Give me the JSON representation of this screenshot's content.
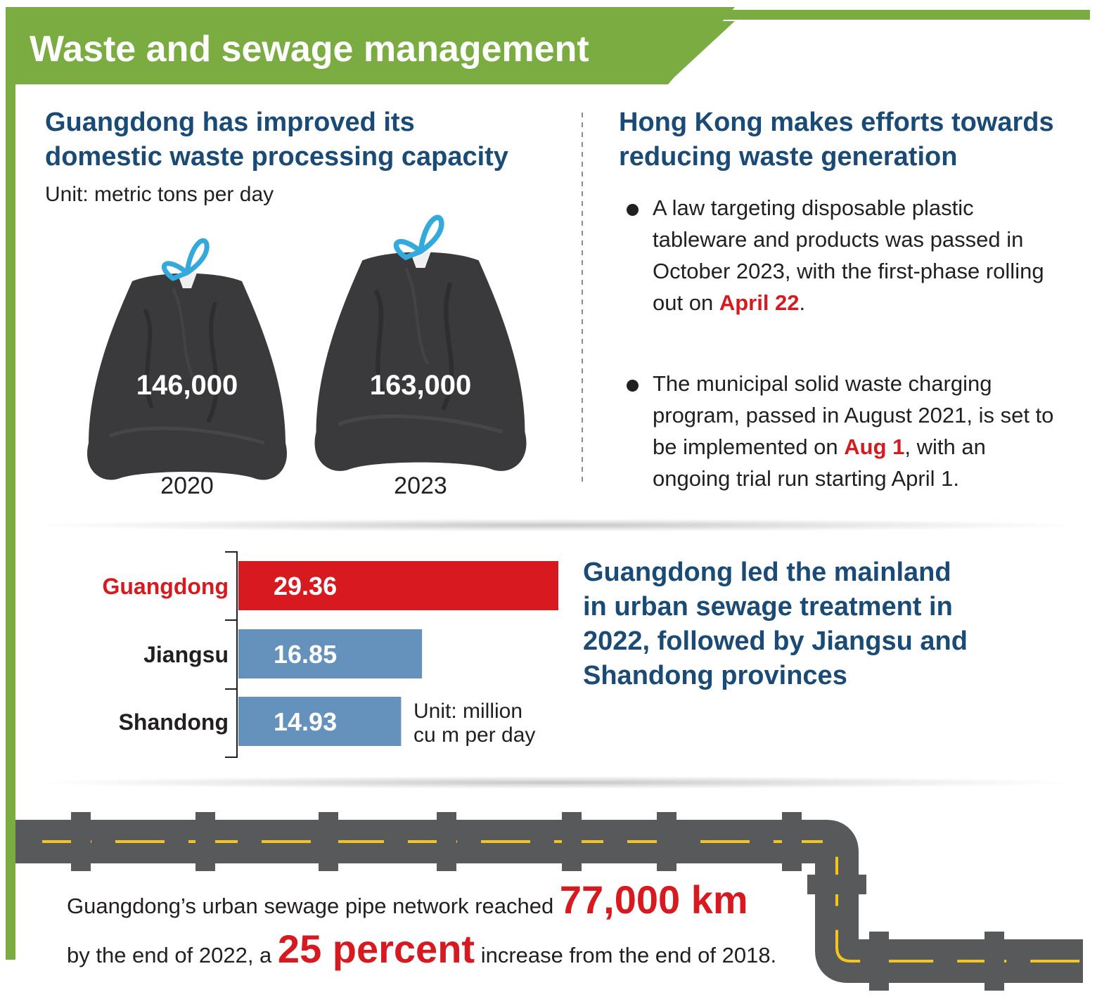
{
  "header": {
    "title": "Waste and sewage management"
  },
  "left_panel": {
    "heading": "Guangdong has improved its\ndomestic waste processing capacity",
    "unit": "Unit: metric tons per day",
    "bags": [
      {
        "year": "2020",
        "value_label": "146,000"
      },
      {
        "year": "2023",
        "value_label": "163,000"
      }
    ]
  },
  "right_panel": {
    "heading": "Hong Kong makes efforts towards\nreducing waste generation",
    "bullets": [
      {
        "before": "A law targeting disposable plastic tableware and products was passed in October 2023, with the first-phase rolling out on ",
        "highlight": "April 22",
        "after": "."
      },
      {
        "before": "The municipal solid waste charging program, passed in August 2021, is set to be implemented on ",
        "highlight": "Aug 1",
        "after": ", with an ongoing trial run starting April 1."
      }
    ]
  },
  "sewage": {
    "heading": "Guangdong led the mainland\nin urban sewage treatment in\n2022, followed by Jiangsu and\nShandong provinces",
    "unit_line1": "Unit: million",
    "unit_line2": "cu m per day"
  },
  "chart_data": [
    {
      "type": "bar",
      "title": "Guangdong has improved its domestic waste processing capacity",
      "unit": "Unit: metric tons per day",
      "categories": [
        "2020",
        "2023"
      ],
      "values": [
        146000,
        163000
      ]
    },
    {
      "type": "bar",
      "orientation": "horizontal",
      "title": "Guangdong led the mainland in urban sewage treatment in 2022, followed by Jiangsu and Shandong provinces",
      "unit": "Unit: million cu m per day",
      "categories": [
        "Guangdong",
        "Jiangsu",
        "Shandong"
      ],
      "values": [
        29.36,
        16.85,
        14.93
      ],
      "colors": [
        "#d71920",
        "#6591bd",
        "#6591bd"
      ],
      "label_colors": [
        "#d71920",
        "#231f20",
        "#231f20"
      ]
    }
  ],
  "pipe": {
    "line1_text": "Guangdong’s urban sewage pipe network reached",
    "line1_highlight": "77,000 km",
    "line2_text_before": "by the end of 2022, a",
    "line2_highlight": "25 percent",
    "line2_text_after": "increase from the end of 2018."
  },
  "colors": {
    "green": "#7aac42",
    "navy": "#1a4a76",
    "red": "#d71920",
    "steel_blue": "#6591bd",
    "pipe_gray": "#58595b",
    "dash_yellow": "#f5c518",
    "bag_black": "#3a3a3c",
    "tie_blue": "#33a9dc"
  }
}
